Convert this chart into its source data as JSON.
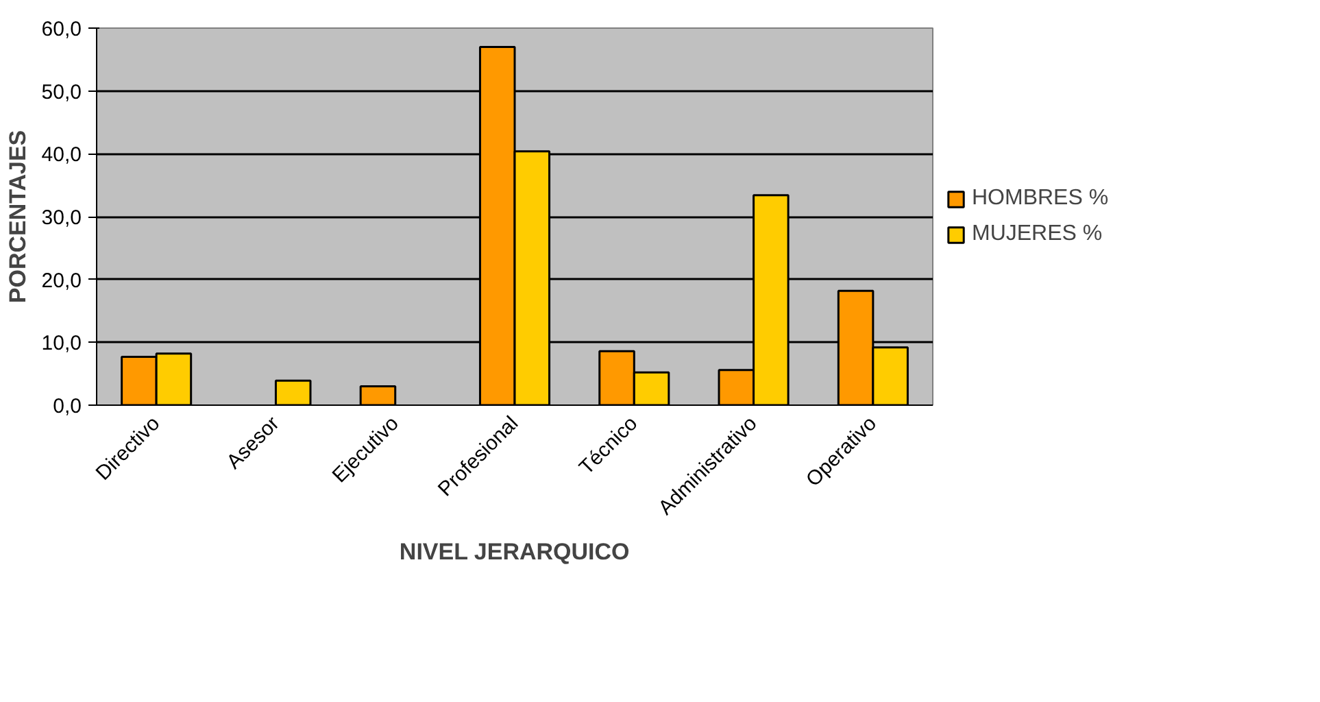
{
  "chart_data": {
    "type": "bar",
    "xlabel": "NIVEL JERARQUICO",
    "ylabel": "PORCENTAJES",
    "categories": [
      "Directivo",
      "Asesor",
      "Ejecutivo",
      "Profesional",
      "Técnico",
      "Administrativo",
      "Operativo"
    ],
    "series": [
      {
        "name": "HOMBRES %",
        "color": "#ff9900",
        "values": [
          7.7,
          null,
          3.0,
          57.0,
          8.6,
          5.6,
          18.2
        ]
      },
      {
        "name": "MUJERES %",
        "color": "#ffcc00",
        "values": [
          8.2,
          3.9,
          null,
          40.4,
          5.2,
          33.4,
          9.2
        ]
      }
    ],
    "ylim": [
      0,
      60
    ],
    "yticks": [
      {
        "value": 0,
        "label": "0,0"
      },
      {
        "value": 10,
        "label": "10,0"
      },
      {
        "value": 20,
        "label": "20,0"
      },
      {
        "value": 30,
        "label": "30,0"
      },
      {
        "value": 40,
        "label": "40,0"
      },
      {
        "value": 50,
        "label": "50,0"
      },
      {
        "value": 60,
        "label": "60,0"
      }
    ],
    "grid": "y",
    "legend": "right"
  }
}
